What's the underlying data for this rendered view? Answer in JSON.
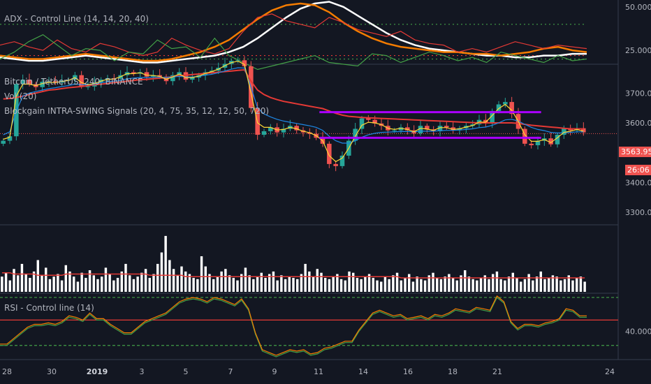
{
  "chart_data": [
    {
      "type": "line",
      "title": "ADX - Control Line (14, 14, 20, 40)",
      "y_ticks": [
        "50.0000",
        "25.0000"
      ],
      "y_ticks_values": [
        50,
        25
      ],
      "ylim": [
        17,
        54
      ],
      "series": [
        {
          "color": "#ffffff",
          "values": [
            21,
            20,
            19,
            19,
            20,
            21,
            22,
            21,
            20,
            19,
            18,
            18,
            19,
            20,
            21,
            22,
            24,
            27,
            32,
            38,
            44,
            49,
            52,
            53,
            50,
            45,
            40,
            35,
            31,
            28,
            26,
            25,
            24,
            23,
            22,
            22,
            21,
            21,
            22,
            22,
            23,
            23
          ]
        },
        {
          "color": "#f57c00",
          "values": [
            22,
            21,
            20,
            20,
            21,
            22,
            23,
            22,
            21,
            20,
            19,
            19,
            20,
            22,
            24,
            27,
            31,
            37,
            43,
            48,
            51,
            52,
            51,
            47,
            41,
            36,
            32,
            29,
            27,
            26,
            25,
            24,
            24,
            23,
            23,
            22,
            23,
            24,
            26,
            27,
            25,
            24
          ]
        },
        {
          "color": "#e53935",
          "values": [
            28,
            30,
            27,
            25,
            31,
            26,
            24,
            29,
            27,
            24,
            22,
            24,
            32,
            28,
            25,
            23,
            26,
            36,
            44,
            46,
            42,
            40,
            38,
            44,
            41,
            37,
            35,
            33,
            36,
            31,
            29,
            28,
            24,
            26,
            24,
            27,
            30,
            28,
            26,
            28,
            27,
            26
          ]
        },
        {
          "color": "#43a047",
          "values": [
            20,
            24,
            30,
            34,
            28,
            22,
            26,
            25,
            19,
            24,
            23,
            31,
            26,
            27,
            21,
            32,
            22,
            18,
            14,
            16,
            18,
            20,
            22,
            18,
            17,
            16,
            23,
            22,
            18,
            21,
            24,
            22,
            19,
            21,
            18,
            24,
            22,
            20,
            18,
            22,
            19,
            20
          ]
        }
      ],
      "hlines": [
        {
          "value": 40,
          "color": "#43a047"
        },
        {
          "value": 22,
          "color": "#e53935"
        },
        {
          "value": 20,
          "color": "#43a047"
        }
      ]
    },
    {
      "type": "candlestick",
      "title": "Bitcoin / TetherUS, 240, BINANCE",
      "indicators": [
        "Vol (20)",
        "Blockgain INTRA-SWING Signals (20, 4, 75, 35, 12, 12, 50, 720)"
      ],
      "y_ticks": [
        "3700.00",
        "3600.00",
        "3500.00",
        "3400.00",
        "3300.00"
      ],
      "y_ticks_values": [
        3700,
        3600,
        3500,
        3400,
        3300
      ],
      "ylim": [
        3258,
        3792
      ],
      "last_price": "3563.95",
      "countdown": "26:06",
      "price_line": 3563.95,
      "closes": [
        3540,
        3555,
        3730,
        3745,
        3730,
        3720,
        3738,
        3740,
        3735,
        3742,
        3745,
        3760,
        3722,
        3722,
        3735,
        3745,
        3750,
        3748,
        3760,
        3770,
        3765,
        3770,
        3755,
        3760,
        3755,
        3740,
        3760,
        3770,
        3745,
        3752,
        3760,
        3770,
        3775,
        3785,
        3798,
        3808,
        3810,
        3790,
        3650,
        3560,
        3572,
        3585,
        3568,
        3580,
        3590,
        3575,
        3568,
        3563,
        3550,
        3530,
        3462,
        3455,
        3490,
        3540,
        3580,
        3615,
        3610,
        3598,
        3590,
        3575,
        3575,
        3585,
        3575,
        3565,
        3590,
        3578,
        3572,
        3590,
        3585,
        3575,
        3582,
        3590,
        3595,
        3610,
        3600,
        3640,
        3662,
        3670,
        3630,
        3580,
        3530,
        3525,
        3540,
        3548,
        3528,
        3560,
        3580,
        3575,
        3582,
        3568
      ],
      "ma_lines": [
        {
          "color": "#e53935",
          "values": [
            3680,
            3682,
            3685,
            3690,
            3695,
            3700,
            3705,
            3710,
            3712,
            3715,
            3718,
            3720,
            3722,
            3725,
            3728,
            3730,
            3732,
            3735,
            3737,
            3740,
            3742,
            3745,
            3746,
            3748,
            3750,
            3752,
            3755,
            3758,
            3760,
            3762,
            3764,
            3766,
            3768,
            3770,
            3772,
            3774,
            3776,
            3778,
            3740,
            3710,
            3695,
            3685,
            3678,
            3672,
            3668,
            3664,
            3660,
            3656,
            3652,
            3648,
            3640,
            3632,
            3626,
            3622,
            3620,
            3618,
            3617,
            3616,
            3615,
            3614,
            3613,
            3612,
            3611,
            3610,
            3609,
            3608,
            3607,
            3606,
            3605,
            3604,
            3603,
            3602,
            3601,
            3600,
            3600,
            3600,
            3600,
            3600,
            3600,
            3598,
            3595,
            3592,
            3590,
            3588,
            3586,
            3584,
            3582,
            3580,
            3580,
            3580
          ]
        },
        {
          "color": "#1e88e5",
          "values": [
            3560,
            3570,
            3640,
            3690,
            3700,
            3705,
            3710,
            3715,
            3718,
            3722,
            3725,
            3730,
            3728,
            3728,
            3730,
            3735,
            3738,
            3740,
            3742,
            3748,
            3750,
            3752,
            3752,
            3753,
            3753,
            3752,
            3754,
            3756,
            3754,
            3754,
            3756,
            3760,
            3763,
            3768,
            3774,
            3780,
            3785,
            3784,
            3720,
            3650,
            3630,
            3620,
            3612,
            3606,
            3602,
            3598,
            3594,
            3590,
            3585,
            3575,
            3555,
            3540,
            3532,
            3532,
            3540,
            3552,
            3560,
            3565,
            3568,
            3569,
            3570,
            3571,
            3571,
            3570,
            3572,
            3572,
            3572,
            3574,
            3575,
            3575,
            3576,
            3578,
            3580,
            3584,
            3586,
            3592,
            3600,
            3610,
            3612,
            3606,
            3595,
            3585,
            3578,
            3574,
            3568,
            3566,
            3567,
            3568,
            3570,
            3570
          ]
        },
        {
          "color": "#fdd835",
          "values": [
            3545,
            3552,
            3690,
            3730,
            3730,
            3725,
            3732,
            3736,
            3735,
            3739,
            3742,
            3752,
            3735,
            3728,
            3732,
            3740,
            3746,
            3747,
            3755,
            3765,
            3765,
            3768,
            3760,
            3759,
            3756,
            3746,
            3754,
            3764,
            3752,
            3752,
            3757,
            3766,
            3772,
            3780,
            3792,
            3802,
            3807,
            3796,
            3700,
            3600,
            3585,
            3585,
            3576,
            3578,
            3585,
            3580,
            3572,
            3567,
            3557,
            3540,
            3490,
            3470,
            3482,
            3515,
            3555,
            3592,
            3602,
            3600,
            3594,
            3582,
            3578,
            3582,
            3578,
            3570,
            3582,
            3579,
            3575,
            3584,
            3584,
            3578,
            3580,
            3586,
            3591,
            3603,
            3602,
            3625,
            3648,
            3662,
            3642,
            3605,
            3560,
            3538,
            3538,
            3544,
            3534,
            3550,
            3568,
            3572,
            3578,
            3572
          ]
        }
      ],
      "hlines": [
        {
          "y": 3636,
          "color": "#aa00ff",
          "x_from": 49,
          "x_to": 83
        },
        {
          "y": 3550,
          "color": "#aa00ff",
          "x_from": 49,
          "x_to": 83
        }
      ],
      "volume": [
        12,
        15,
        9,
        18,
        13,
        22,
        14,
        11,
        16,
        25,
        13,
        19,
        10,
        12,
        14,
        9,
        21,
        16,
        12,
        8,
        15,
        11,
        17,
        13,
        10,
        12,
        19,
        14,
        9,
        11,
        16,
        22,
        13,
        10,
        12,
        15,
        18,
        11,
        14,
        22,
        31,
        44,
        25,
        18,
        13,
        20,
        16,
        14,
        11,
        10,
        28,
        20,
        14,
        10,
        12,
        16,
        18,
        13,
        11,
        9,
        14,
        19,
        13,
        10,
        12,
        15,
        11,
        14,
        16,
        9,
        13,
        10,
        12,
        11,
        10,
        14,
        22,
        16,
        12,
        18,
        15,
        11,
        10,
        12,
        14,
        10,
        9,
        16,
        15,
        11,
        10,
        12,
        14,
        11,
        9,
        8,
        12,
        10,
        13,
        15,
        9,
        11,
        14,
        8,
        12,
        10,
        9,
        13,
        15,
        11,
        10,
        12,
        14,
        11,
        9,
        13,
        17,
        12,
        10,
        9,
        11,
        13,
        10,
        14,
        16,
        10,
        9,
        12,
        15,
        11,
        8,
        10,
        14,
        9,
        12,
        16,
        10,
        11,
        13,
        12,
        9,
        10,
        13,
        9,
        11,
        12,
        8
      ],
      "volume_ma": [
        15,
        15,
        15,
        14,
        14,
        14,
        14,
        14,
        14,
        13,
        13,
        13,
        13,
        13,
        13,
        13,
        14,
        14,
        14,
        14,
        14,
        14,
        14,
        14,
        14,
        14,
        14,
        14,
        14,
        14,
        14,
        14,
        14,
        14,
        14,
        14,
        14,
        13,
        13,
        13,
        13,
        13,
        13,
        13,
        13,
        13,
        12,
        12,
        12,
        12,
        12,
        12,
        12,
        12,
        12,
        12,
        12,
        12,
        12,
        12,
        12,
        12,
        12,
        12,
        12,
        12,
        12,
        12,
        12,
        12,
        12,
        12,
        12,
        12,
        12,
        12,
        12,
        12,
        12,
        12,
        12,
        12,
        12,
        12,
        12,
        12,
        12,
        12,
        12,
        12,
        12,
        12,
        12,
        12,
        12,
        12,
        12,
        12,
        12,
        12,
        11,
        11,
        11,
        11,
        11,
        11,
        11,
        11,
        11,
        11,
        11,
        11,
        11,
        11,
        11,
        11,
        11,
        11,
        11,
        11,
        11,
        11,
        11,
        11,
        11,
        11,
        11,
        11,
        11,
        11,
        11,
        11,
        11,
        11,
        11,
        11,
        11,
        11,
        11,
        11,
        11,
        11,
        11,
        11,
        11,
        11,
        11
      ]
    },
    {
      "type": "line",
      "title": "RSI - Control line (14)",
      "y_ticks": [
        "40.0000"
      ],
      "y_ticks_values": [
        40
      ],
      "ylim": [
        20,
        67
      ],
      "series": [
        {
          "color": "#43a047",
          "values": [
            30,
            30,
            34,
            38,
            42,
            44,
            44,
            45,
            44,
            46,
            50,
            49,
            47,
            52,
            48,
            48,
            44,
            41,
            38,
            38,
            42,
            46,
            48,
            50,
            52,
            56,
            60,
            62,
            63,
            62,
            60,
            63,
            62,
            60,
            58,
            62,
            55,
            38,
            26,
            24,
            22,
            24,
            26,
            25,
            26,
            23,
            24,
            27,
            28,
            30,
            32,
            32,
            40,
            46,
            52,
            54,
            52,
            50,
            51,
            48,
            49,
            50,
            48,
            51,
            50,
            52,
            55,
            54,
            53,
            56,
            55,
            54,
            64,
            60,
            46,
            41,
            44,
            44,
            43,
            45,
            46,
            48,
            55,
            54,
            50,
            50
          ]
        },
        {
          "color": "#f57c00",
          "values": [
            31,
            31,
            35,
            39,
            43,
            45,
            45,
            46,
            45,
            47,
            51,
            50,
            48,
            53,
            49,
            49,
            45,
            42,
            39,
            39,
            43,
            47,
            49,
            51,
            53,
            57,
            61,
            63,
            64,
            63,
            61,
            64,
            63,
            61,
            59,
            63,
            56,
            39,
            27,
            25,
            23,
            25,
            27,
            26,
            27,
            24,
            25,
            28,
            29,
            31,
            33,
            33,
            41,
            47,
            53,
            55,
            53,
            51,
            52,
            49,
            50,
            51,
            49,
            52,
            51,
            53,
            56,
            55,
            54,
            57,
            56,
            55,
            65,
            61,
            47,
            42,
            45,
            45,
            44,
            46,
            47,
            49,
            56,
            55,
            51,
            51
          ]
        }
      ],
      "hlines": [
        {
          "value": 64,
          "color": "#43a047"
        },
        {
          "value": 48,
          "color": "#e53935"
        },
        {
          "value": 30,
          "color": "#43a047"
        }
      ]
    }
  ],
  "x_axis": {
    "labels": [
      {
        "text": "28",
        "bold": false
      },
      {
        "text": "30",
        "bold": false
      },
      {
        "text": "2019",
        "bold": true
      },
      {
        "text": "3",
        "bold": false
      },
      {
        "text": "5",
        "bold": false
      },
      {
        "text": "7",
        "bold": false
      },
      {
        "text": "9",
        "bold": false
      },
      {
        "text": "11",
        "bold": false
      },
      {
        "text": "14",
        "bold": false
      },
      {
        "text": "16",
        "bold": false
      },
      {
        "text": "18",
        "bold": false
      },
      {
        "text": "21",
        "bold": false
      },
      {
        "text": "24",
        "bold": false
      }
    ]
  },
  "colors": {
    "background": "#131722",
    "grid": "#1f2433",
    "up": "#26a69a",
    "down": "#ef5350",
    "volume": "#ffffff",
    "volume_ma": "#e53935",
    "price_tag": "#ef5350"
  }
}
